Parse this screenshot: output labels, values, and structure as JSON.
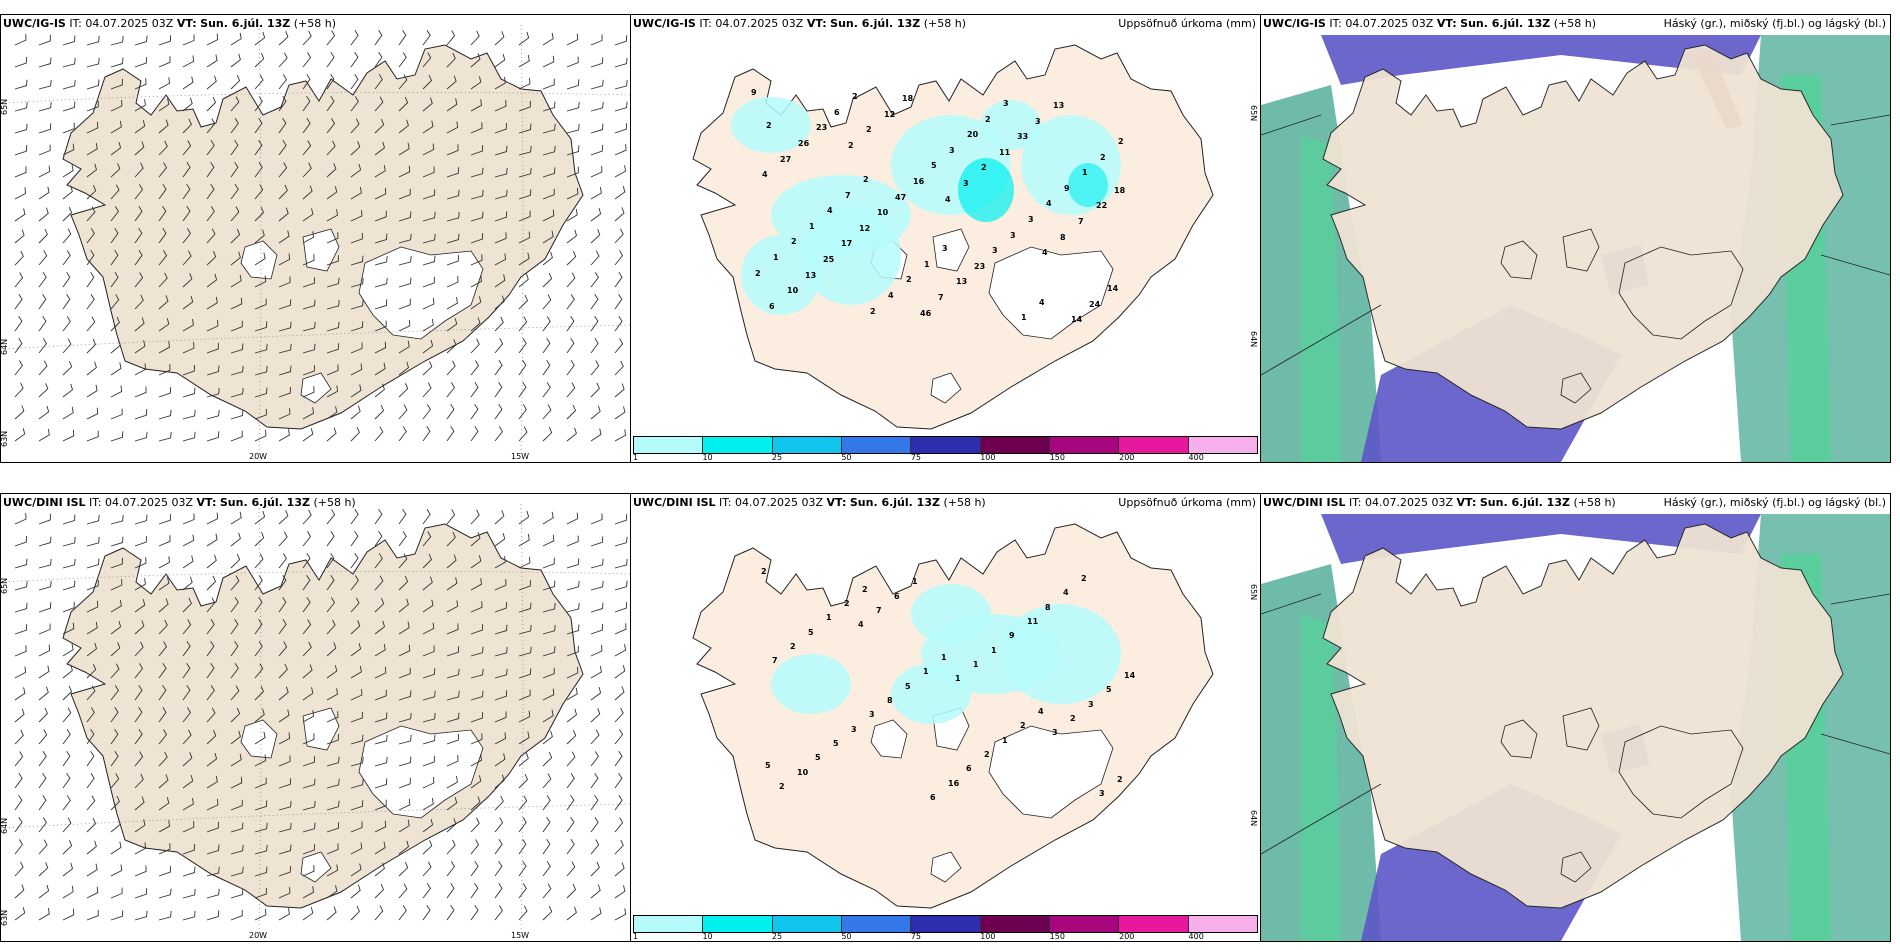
{
  "rows": [
    {
      "model": "UWC/IG-IS",
      "it_label": "IT:",
      "it_value": "04.07.2025 03Z",
      "vt_label": "VT:",
      "vt_value": "Sun. 6.júl. 13Z",
      "lead": "(+58 h)",
      "precip_values": [
        "9",
        "2",
        "4",
        "4",
        "6",
        "2",
        "3",
        "8",
        "10",
        "12",
        "2",
        "7",
        "13",
        "18",
        "11",
        "22",
        "25",
        "46",
        "33",
        "18",
        "17",
        "7",
        "3",
        "4",
        "12",
        "13",
        "13",
        "27",
        "10",
        "23",
        "14",
        "26",
        "47",
        "3",
        "24",
        "23",
        "16",
        "3",
        "14",
        "6",
        "5",
        "3",
        "2",
        "2",
        "3",
        "4",
        "1",
        "2",
        "20",
        "9",
        "2",
        "4",
        "2",
        "1",
        "1",
        "2",
        "3",
        "2",
        "4",
        "1",
        "1",
        "2",
        "7",
        "3",
        "4",
        "2",
        "2"
      ]
    },
    {
      "model": "UWC/DINI ISL",
      "it_label": "IT:",
      "it_value": "04.07.2025 03Z",
      "vt_label": "VT:",
      "vt_value": "Sun. 6.júl. 13Z",
      "lead": "(+58 h)",
      "precip_values": [
        "2",
        "4",
        "1",
        "3",
        "2",
        "7",
        "1",
        "2",
        "10",
        "6",
        "1",
        "3",
        "5",
        "1",
        "9",
        "5",
        "5",
        "6",
        "11",
        "14",
        "3",
        "16",
        "8",
        "7",
        "3",
        "6",
        "4",
        "2",
        "8",
        "2",
        "2",
        "5",
        "5",
        "1",
        "3",
        "1",
        "1",
        "2",
        "2",
        "2",
        "1",
        "4",
        "5",
        "2"
      ]
    }
  ],
  "precip_title": "Uppsöfnuð úrkoma (mm)",
  "cloud_title": "Háský (gr.), miðský (fj.bl.) og lágský (bl.)",
  "colorbar": {
    "colors": [
      "#b5fbfb",
      "#00f0f0",
      "#10c4ee",
      "#3377e8",
      "#2b2fae",
      "#6d0050",
      "#a8067c",
      "#e8189e",
      "#f5b0ec"
    ],
    "labels": [
      "1",
      "10",
      "25",
      "50",
      "75",
      "100",
      "150",
      "200",
      "400"
    ]
  },
  "axis_labels": {
    "lon_20w": "20W",
    "lon_15w": "15W",
    "lat_65n": "65N",
    "lat_64n": "64N",
    "lat_63n": "63N"
  },
  "colors": {
    "land": "#efe3d3",
    "land_precip_panel": "#fbeee0",
    "water": "#ffffff",
    "cloud_high": "#5fb4a0",
    "cloud_mid": "#54d29a",
    "cloud_low": "#5c56c6",
    "cloud_heavy": "#9a1b3a"
  }
}
